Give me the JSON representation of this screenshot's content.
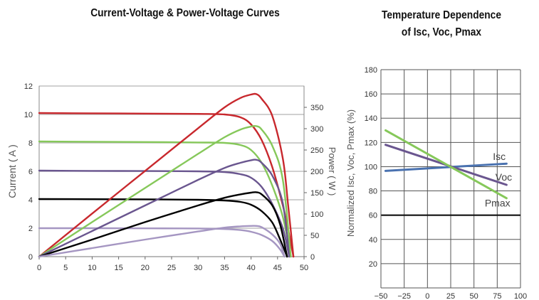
{
  "chart_data": [
    {
      "type": "line",
      "title": "Current-Voltage & Power-Voltage Curves",
      "xlabel": "",
      "ylabel": "Current ( A )",
      "y2label": "Power ( W )",
      "xlim": [
        0,
        50
      ],
      "ylim": [
        0,
        12
      ],
      "y2lim": [
        0,
        400
      ],
      "xticks": [
        "0",
        "5",
        "10",
        "15",
        "20",
        "25",
        "30",
        "35",
        "40",
        "45",
        "50"
      ],
      "yticks": [
        "0",
        "2",
        "4",
        "6",
        "8",
        "10",
        "12"
      ],
      "y2ticks": [
        "0",
        "50",
        "100",
        "150",
        "200",
        "250",
        "300",
        "350"
      ],
      "grid": true,
      "colors": {
        "series1": "#c8282d",
        "series2": "#86c85a",
        "series3": "#6a568f",
        "series4": "#000000",
        "series5": "#a596c2"
      },
      "series": [
        {
          "kind": "current",
          "color": "#c8282d",
          "points": [
            [
              0,
              10.1
            ],
            [
              10,
              10.08
            ],
            [
              20,
              10.06
            ],
            [
              30,
              10.04
            ],
            [
              35,
              10.0
            ],
            [
              38,
              9.8
            ],
            [
              40,
              9.3
            ],
            [
              42,
              8.2
            ],
            [
              44,
              6.3
            ],
            [
              46,
              3.6
            ],
            [
              47,
              1.9
            ],
            [
              48,
              0
            ]
          ]
        },
        {
          "kind": "current",
          "color": "#86c85a",
          "points": [
            [
              0,
              8.1
            ],
            [
              10,
              8.08
            ],
            [
              20,
              8.06
            ],
            [
              30,
              8.03
            ],
            [
              35,
              8.0
            ],
            [
              38,
              7.85
            ],
            [
              40,
              7.5
            ],
            [
              42,
              6.6
            ],
            [
              44,
              5.0
            ],
            [
              46,
              2.8
            ],
            [
              47.5,
              0
            ]
          ]
        },
        {
          "kind": "current",
          "color": "#6a568f",
          "points": [
            [
              0,
              6.05
            ],
            [
              10,
              6.03
            ],
            [
              20,
              6.02
            ],
            [
              30,
              6.0
            ],
            [
              35,
              5.95
            ],
            [
              38,
              5.8
            ],
            [
              40,
              5.55
            ],
            [
              42,
              4.9
            ],
            [
              44,
              3.7
            ],
            [
              46,
              2.0
            ],
            [
              47.2,
              0
            ]
          ]
        },
        {
          "kind": "current",
          "color": "#000000",
          "points": [
            [
              0,
              4.05
            ],
            [
              10,
              4.04
            ],
            [
              20,
              4.03
            ],
            [
              30,
              4.0
            ],
            [
              35,
              3.95
            ],
            [
              38,
              3.85
            ],
            [
              40,
              3.65
            ],
            [
              42,
              3.2
            ],
            [
              44,
              2.4
            ],
            [
              45.5,
              1.2
            ],
            [
              46.8,
              0
            ]
          ]
        },
        {
          "kind": "current",
          "color": "#a596c2",
          "points": [
            [
              0,
              2.0
            ],
            [
              10,
              2.0
            ],
            [
              20,
              1.99
            ],
            [
              30,
              1.98
            ],
            [
              35,
              1.94
            ],
            [
              38,
              1.87
            ],
            [
              40,
              1.75
            ],
            [
              42,
              1.52
            ],
            [
              44,
              1.1
            ],
            [
              45.5,
              0.5
            ],
            [
              46.3,
              0
            ]
          ]
        },
        {
          "kind": "power",
          "color": "#c8282d",
          "points": [
            [
              0,
              0
            ],
            [
              10,
              101
            ],
            [
              20,
              201
            ],
            [
              30,
              301
            ],
            [
              35,
              350
            ],
            [
              38,
              372
            ],
            [
              40,
              380
            ],
            [
              41,
              381
            ],
            [
              42,
              370
            ],
            [
              44,
              330
            ],
            [
              46,
              230
            ],
            [
              47,
              120
            ],
            [
              48,
              0
            ]
          ]
        },
        {
          "kind": "power",
          "color": "#86c85a",
          "points": [
            [
              0,
              0
            ],
            [
              10,
              81
            ],
            [
              20,
              161
            ],
            [
              30,
              241
            ],
            [
              35,
              280
            ],
            [
              38,
              298
            ],
            [
              40,
              305
            ],
            [
              41,
              306
            ],
            [
              42,
              298
            ],
            [
              44,
              260
            ],
            [
              46,
              180
            ],
            [
              47.5,
              0
            ]
          ]
        },
        {
          "kind": "power",
          "color": "#6a568f",
          "points": [
            [
              0,
              0
            ],
            [
              10,
              60
            ],
            [
              20,
              120
            ],
            [
              30,
              180
            ],
            [
              35,
              208
            ],
            [
              38,
              220
            ],
            [
              40,
              226
            ],
            [
              41,
              227
            ],
            [
              42,
              220
            ],
            [
              44,
              190
            ],
            [
              46,
              125
            ],
            [
              47.2,
              0
            ]
          ]
        },
        {
          "kind": "power",
          "color": "#000000",
          "points": [
            [
              0,
              0
            ],
            [
              10,
              40
            ],
            [
              20,
              81
            ],
            [
              30,
              120
            ],
            [
              35,
              138
            ],
            [
              38,
              146
            ],
            [
              40,
              150
            ],
            [
              41,
              151
            ],
            [
              42,
              146
            ],
            [
              44,
              120
            ],
            [
              45.5,
              75
            ],
            [
              46.8,
              0
            ]
          ]
        },
        {
          "kind": "power",
          "color": "#a596c2",
          "points": [
            [
              0,
              0
            ],
            [
              10,
              20
            ],
            [
              20,
              40
            ],
            [
              30,
              59
            ],
            [
              35,
              68
            ],
            [
              38,
              71
            ],
            [
              40,
              72
            ],
            [
              41,
              72
            ],
            [
              42,
              69
            ],
            [
              44,
              52
            ],
            [
              45.5,
              30
            ],
            [
              46.3,
              0
            ]
          ]
        }
      ]
    },
    {
      "type": "line",
      "title": "Temperature Dependence of Isc, Voc, Pmax",
      "xlabel": "",
      "ylabel": "Normalized Isc, Voc, Pmax (%)",
      "xlim": [
        -50,
        100
      ],
      "ylim": [
        0,
        180
      ],
      "xticks": [
        "−50",
        "−25",
        "0",
        "25",
        "50",
        "75",
        "100"
      ],
      "yticks": [
        "20",
        "40",
        "60",
        "80",
        "100",
        "120",
        "140",
        "160",
        "180"
      ],
      "grid": true,
      "highlight_line": 60,
      "series": [
        {
          "name": "Isc",
          "color": "#4a72b0",
          "x": [
            -45,
            85
          ],
          "values": [
            96.5,
            102.5
          ]
        },
        {
          "name": "Voc",
          "color": "#6a568f",
          "x": [
            -45,
            85
          ],
          "values": [
            118,
            85
          ]
        },
        {
          "name": "Pmax",
          "color": "#86c85a",
          "x": [
            -45,
            85
          ],
          "values": [
            130,
            74
          ]
        }
      ]
    }
  ]
}
